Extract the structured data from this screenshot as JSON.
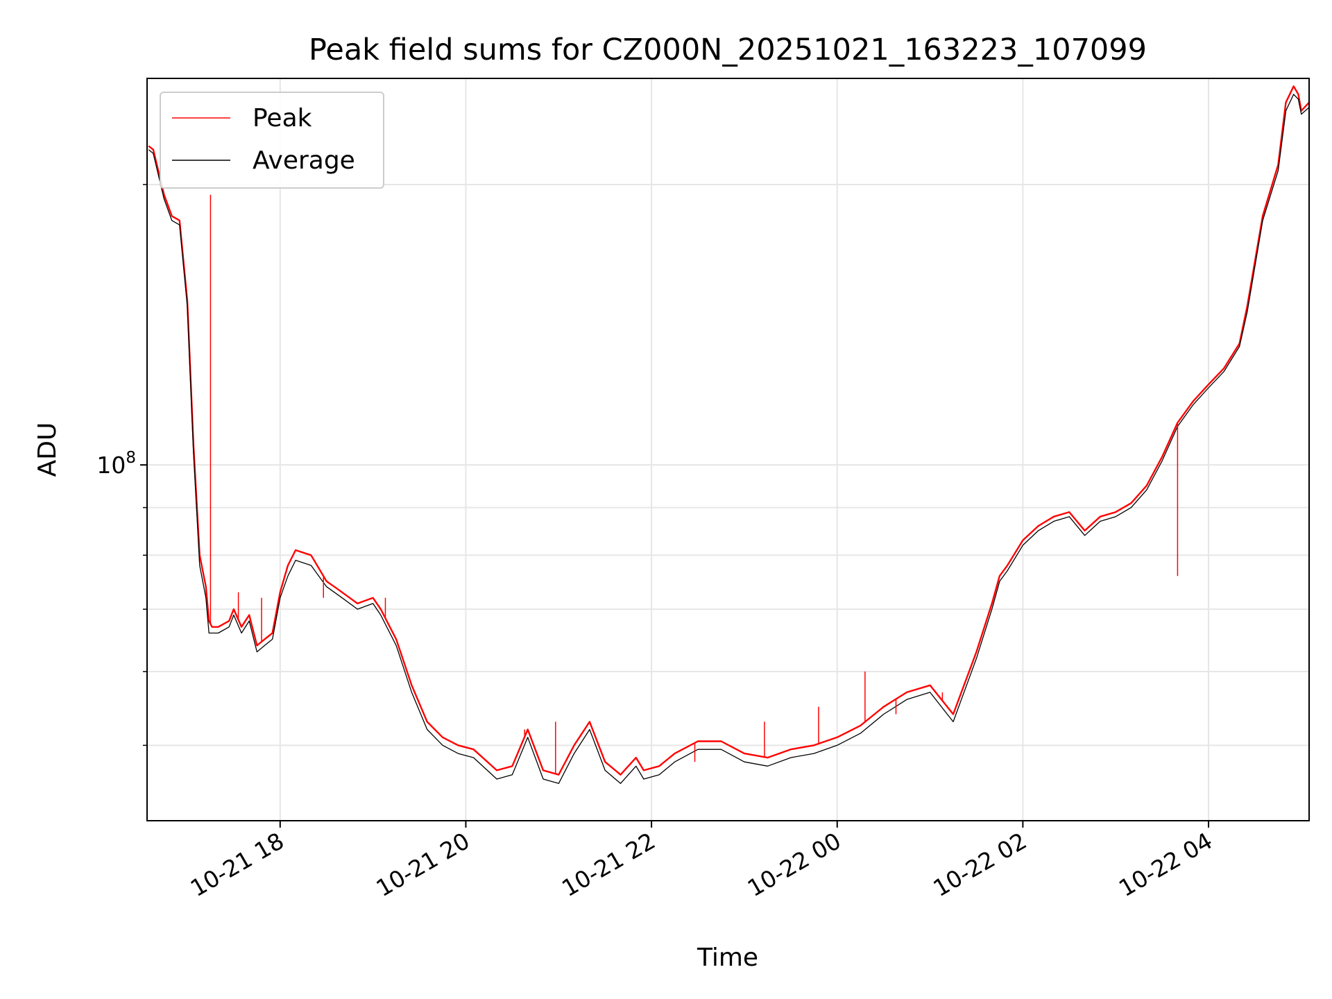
{
  "chart_data": {
    "type": "line",
    "title": "Peak field sums for CZ000N_20251021_163223_107099",
    "xlabel": "Time",
    "ylabel": "ADU",
    "yscale": "log",
    "xlim": [
      "2025-10-21 16:34",
      "2025-10-22 05:05"
    ],
    "ylim": [
      41500000,
      260000000
    ],
    "grid": true,
    "legend": {
      "position": "top-left",
      "entries": [
        "Peak",
        "Average"
      ]
    },
    "x_ticks": [
      {
        "value": "2025-10-21 18:00",
        "label": "10-21 18"
      },
      {
        "value": "2025-10-21 20:00",
        "label": "10-21 20"
      },
      {
        "value": "2025-10-21 22:00",
        "label": "10-21 22"
      },
      {
        "value": "2025-10-22 00:00",
        "label": "10-22 00"
      },
      {
        "value": "2025-10-22 02:00",
        "label": "10-22 02"
      },
      {
        "value": "2025-10-22 04:00",
        "label": "10-22 04"
      }
    ],
    "y_major_ticks": [
      {
        "value": 100000000,
        "base": "10",
        "exponent": "8"
      }
    ],
    "y_minor_ticks": [
      50000000,
      60000000,
      70000000,
      80000000,
      90000000,
      200000000
    ],
    "series": [
      {
        "name": "Peak",
        "color": "#ff0000",
        "x": [
          "2025-10-21 16:35",
          "2025-10-21 16:38",
          "2025-10-21 16:45",
          "2025-10-21 16:50",
          "2025-10-21 16:55",
          "2025-10-21 17:00",
          "2025-10-21 17:04",
          "2025-10-21 17:08",
          "2025-10-21 17:12",
          "2025-10-21 17:14",
          "2025-10-21 17:16",
          "2025-10-21 17:20",
          "2025-10-21 17:27",
          "2025-10-21 17:30",
          "2025-10-21 17:35",
          "2025-10-21 17:40",
          "2025-10-21 17:45",
          "2025-10-21 17:50",
          "2025-10-21 17:55",
          "2025-10-21 18:00",
          "2025-10-21 18:05",
          "2025-10-21 18:10",
          "2025-10-21 18:20",
          "2025-10-21 18:30",
          "2025-10-21 18:35",
          "2025-10-21 18:40",
          "2025-10-21 18:50",
          "2025-10-21 19:00",
          "2025-10-21 19:05",
          "2025-10-21 19:15",
          "2025-10-21 19:25",
          "2025-10-21 19:35",
          "2025-10-21 19:45",
          "2025-10-21 19:55",
          "2025-10-21 20:05",
          "2025-10-21 20:20",
          "2025-10-21 20:30",
          "2025-10-21 20:40",
          "2025-10-21 20:50",
          "2025-10-21 21:00",
          "2025-10-21 21:10",
          "2025-10-21 21:20",
          "2025-10-21 21:30",
          "2025-10-21 21:40",
          "2025-10-21 21:50",
          "2025-10-21 21:55",
          "2025-10-21 22:05",
          "2025-10-21 22:15",
          "2025-10-21 22:30",
          "2025-10-21 22:45",
          "2025-10-21 23:00",
          "2025-10-21 23:15",
          "2025-10-21 23:30",
          "2025-10-21 23:45",
          "2025-10-22 00:00",
          "2025-10-22 00:15",
          "2025-10-22 00:30",
          "2025-10-22 00:45",
          "2025-10-22 01:00",
          "2025-10-22 01:15",
          "2025-10-22 01:30",
          "2025-10-22 01:40",
          "2025-10-22 01:45",
          "2025-10-22 01:50",
          "2025-10-22 02:00",
          "2025-10-22 02:10",
          "2025-10-22 02:20",
          "2025-10-22 02:30",
          "2025-10-22 02:40",
          "2025-10-22 02:50",
          "2025-10-22 03:00",
          "2025-10-22 03:10",
          "2025-10-22 03:20",
          "2025-10-22 03:30",
          "2025-10-22 03:40",
          "2025-10-22 03:50",
          "2025-10-22 04:00",
          "2025-10-22 04:10",
          "2025-10-22 04:20",
          "2025-10-22 04:25",
          "2025-10-22 04:35",
          "2025-10-22 04:45",
          "2025-10-22 04:50",
          "2025-10-22 04:55",
          "2025-10-22 04:58",
          "2025-10-22 05:00",
          "2025-10-22 05:05"
        ],
        "values": [
          220000000,
          218000000,
          195000000,
          185000000,
          183000000,
          150000000,
          105000000,
          80000000,
          74000000,
          68000000,
          67000000,
          67000000,
          68000000,
          70000000,
          67000000,
          69000000,
          64000000,
          65000000,
          66000000,
          73000000,
          78000000,
          81000000,
          80000000,
          75000000,
          74000000,
          73000000,
          71000000,
          72000000,
          70000000,
          65000000,
          58000000,
          53000000,
          51000000,
          50000000,
          49500000,
          47000000,
          47500000,
          52000000,
          47000000,
          46500000,
          50000000,
          53000000,
          48000000,
          46500000,
          48500000,
          47000000,
          47500000,
          49000000,
          50500000,
          50500000,
          49000000,
          48500000,
          49500000,
          50000000,
          51000000,
          52500000,
          55000000,
          57000000,
          58000000,
          54000000,
          63000000,
          71000000,
          76000000,
          78000000,
          83000000,
          86000000,
          88000000,
          89000000,
          85000000,
          88000000,
          89000000,
          91000000,
          95000000,
          102000000,
          111000000,
          117000000,
          122000000,
          127000000,
          135000000,
          148000000,
          185000000,
          210000000,
          245000000,
          255000000,
          250000000,
          240000000,
          245000000
        ]
      },
      {
        "name": "Average",
        "color": "#000000",
        "x": [
          "2025-10-21 16:35",
          "2025-10-21 16:38",
          "2025-10-21 16:45",
          "2025-10-21 16:50",
          "2025-10-21 16:55",
          "2025-10-21 17:00",
          "2025-10-21 17:04",
          "2025-10-21 17:08",
          "2025-10-21 17:12",
          "2025-10-21 17:14",
          "2025-10-21 17:16",
          "2025-10-21 17:20",
          "2025-10-21 17:27",
          "2025-10-21 17:30",
          "2025-10-21 17:35",
          "2025-10-21 17:40",
          "2025-10-21 17:45",
          "2025-10-21 17:50",
          "2025-10-21 17:55",
          "2025-10-21 18:00",
          "2025-10-21 18:05",
          "2025-10-21 18:10",
          "2025-10-21 18:20",
          "2025-10-21 18:30",
          "2025-10-21 18:35",
          "2025-10-21 18:40",
          "2025-10-21 18:50",
          "2025-10-21 19:00",
          "2025-10-21 19:05",
          "2025-10-21 19:15",
          "2025-10-21 19:25",
          "2025-10-21 19:35",
          "2025-10-21 19:45",
          "2025-10-21 19:55",
          "2025-10-21 20:05",
          "2025-10-21 20:20",
          "2025-10-21 20:30",
          "2025-10-21 20:40",
          "2025-10-21 20:50",
          "2025-10-21 21:00",
          "2025-10-21 21:10",
          "2025-10-21 21:20",
          "2025-10-21 21:30",
          "2025-10-21 21:40",
          "2025-10-21 21:50",
          "2025-10-21 21:55",
          "2025-10-21 22:05",
          "2025-10-21 22:15",
          "2025-10-21 22:30",
          "2025-10-21 22:45",
          "2025-10-21 23:00",
          "2025-10-21 23:15",
          "2025-10-21 23:30",
          "2025-10-21 23:45",
          "2025-10-22 00:00",
          "2025-10-22 00:15",
          "2025-10-22 00:30",
          "2025-10-22 00:45",
          "2025-10-22 01:00",
          "2025-10-22 01:15",
          "2025-10-22 01:30",
          "2025-10-22 01:40",
          "2025-10-22 01:45",
          "2025-10-22 01:50",
          "2025-10-22 02:00",
          "2025-10-22 02:10",
          "2025-10-22 02:20",
          "2025-10-22 02:30",
          "2025-10-22 02:40",
          "2025-10-22 02:50",
          "2025-10-22 03:00",
          "2025-10-22 03:10",
          "2025-10-22 03:20",
          "2025-10-22 03:30",
          "2025-10-22 03:40",
          "2025-10-22 03:50",
          "2025-10-22 04:00",
          "2025-10-22 04:10",
          "2025-10-22 04:20",
          "2025-10-22 04:25",
          "2025-10-22 04:35",
          "2025-10-22 04:45",
          "2025-10-22 04:50",
          "2025-10-22 04:55",
          "2025-10-22 04:58",
          "2025-10-22 05:00",
          "2025-10-22 05:05"
        ],
        "values": [
          218000000,
          216000000,
          193000000,
          183000000,
          181000000,
          148000000,
          103000000,
          78000000,
          72000000,
          66000000,
          66000000,
          66000000,
          67000000,
          69000000,
          66000000,
          68000000,
          63000000,
          64000000,
          65000000,
          72000000,
          76000000,
          79000000,
          78000000,
          74000000,
          73000000,
          72000000,
          70000000,
          71000000,
          69000000,
          64000000,
          57000000,
          52000000,
          50000000,
          49000000,
          48500000,
          46000000,
          46500000,
          51000000,
          46000000,
          45500000,
          49000000,
          52000000,
          47000000,
          45500000,
          47500000,
          46000000,
          46500000,
          48000000,
          49500000,
          49500000,
          48000000,
          47500000,
          48500000,
          49000000,
          50000000,
          51500000,
          54000000,
          56000000,
          57000000,
          53000000,
          62000000,
          70000000,
          75000000,
          77000000,
          82000000,
          85000000,
          87000000,
          88000000,
          84000000,
          87000000,
          88000000,
          90000000,
          94000000,
          101000000,
          110000000,
          116000000,
          121000000,
          126000000,
          134000000,
          146000000,
          183000000,
          207000000,
          240000000,
          250000000,
          247000000,
          238000000,
          242000000
        ]
      }
    ],
    "spikes": {
      "color": "#ff0000",
      "x": [
        "2025-10-21 17:15",
        "2025-10-21 17:33",
        "2025-10-21 17:48",
        "2025-10-21 18:28",
        "2025-10-21 19:08",
        "2025-10-21 20:38",
        "2025-10-21 20:58",
        "2025-10-21 22:28",
        "2025-10-21 23:13",
        "2025-10-21 23:48",
        "2025-10-22 00:18",
        "2025-10-22 00:38",
        "2025-10-22 01:08",
        "2025-10-22 03:40"
      ],
      "values": [
        195000000,
        73000000,
        72000000,
        72000000,
        72000000,
        52000000,
        53000000,
        48000000,
        53000000,
        55000000,
        60000000,
        54000000,
        57000000,
        76000000
      ]
    }
  }
}
